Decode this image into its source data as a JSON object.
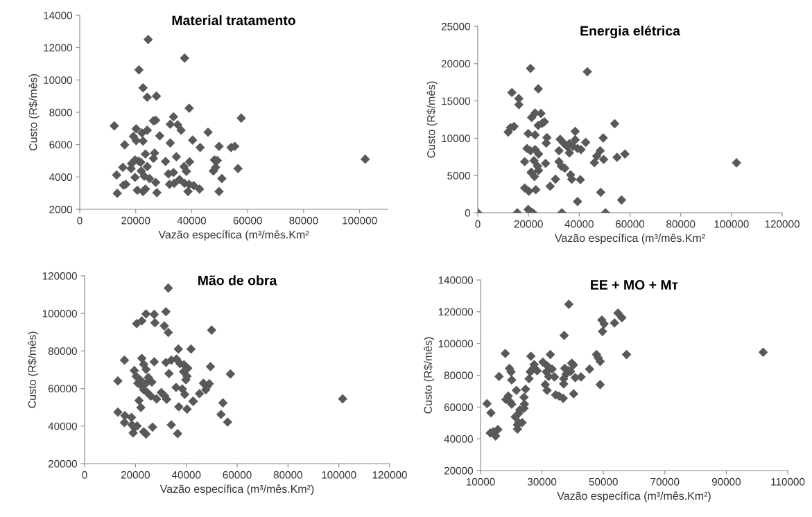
{
  "chart_data": [
    {
      "type": "scatter",
      "title": "Material tratamento",
      "xlabel": "Vazão específica (m³/mês.Km²",
      "ylabel": "Custo (R$/mês)",
      "marker": "diamond",
      "grid": false,
      "xlim": [
        0,
        110000
      ],
      "xticks": [
        0,
        20000,
        40000,
        60000,
        80000,
        100000
      ],
      "ylim": [
        2000,
        14000
      ],
      "yticks": [
        2000,
        4000,
        6000,
        8000,
        10000,
        12000,
        14000
      ],
      "series": [
        {
          "color": "#595959",
          "x": [
            24440,
            37450,
            21150,
            22630,
            24110,
            27400,
            39090,
            57690,
            12340,
            26330,
            27150,
            33500,
            32340,
            34980,
            36210,
            20160,
            22230,
            24110,
            19180,
            20160,
            22630,
            28580,
            45840,
            16050,
            32340,
            40320,
            43040,
            49780,
            54060,
            55380,
            23460,
            26740,
            26330,
            30650,
            34520,
            18520,
            19760,
            20980,
            21800,
            24110,
            39250,
            48140,
            49130,
            15390,
            18350,
            21980,
            37280,
            38110,
            47730,
            48550,
            56540,
            13170,
            19760,
            23050,
            24940,
            31680,
            33500,
            35640,
            50780,
            15640,
            16460,
            27150,
            32090,
            33740,
            37450,
            39090,
            40730,
            20570,
            22630,
            23460,
            38680,
            42790,
            27560,
            49780,
            13410,
            102000
          ],
          "values": [
            12500,
            11350,
            10620,
            9510,
            8930,
            9000,
            8250,
            7640,
            7160,
            7470,
            7510,
            7720,
            7260,
            7230,
            6890,
            6980,
            6720,
            6890,
            6510,
            6250,
            6220,
            6540,
            6770,
            5990,
            6100,
            6280,
            5820,
            5890,
            5820,
            5890,
            5420,
            5480,
            5150,
            4960,
            5250,
            4830,
            5050,
            4980,
            4910,
            4640,
            4940,
            5050,
            5020,
            4590,
            4520,
            4370,
            4640,
            4350,
            4370,
            4590,
            4520,
            4120,
            3970,
            4050,
            3900,
            4190,
            4270,
            3840,
            3900,
            3490,
            3540,
            3660,
            3540,
            3610,
            3610,
            3540,
            3470,
            3180,
            3100,
            3250,
            3100,
            3250,
            3030,
            3100,
            2990,
            5100
          ]
        }
      ]
    },
    {
      "type": "scatter",
      "title": "Energia elétrica",
      "xlabel": "Vazão específica (m³/mês.Km²",
      "ylabel": "Custo (R$/mês)",
      "marker": "diamond",
      "grid": false,
      "xlim": [
        0,
        120000
      ],
      "xticks": [
        0,
        20000,
        40000,
        60000,
        80000,
        100000,
        120000
      ],
      "ylim": [
        0,
        25000
      ],
      "yticks": [
        0,
        5000,
        10000,
        15000,
        20000,
        25000
      ],
      "series": [
        {
          "color": "#595959",
          "x": [
            0,
            15560,
            19870,
            20790,
            21700,
            33130,
            50340,
            20790,
            43200,
            23840,
            13460,
            16200,
            16200,
            21240,
            22610,
            24900,
            23800,
            25360,
            26270,
            12000,
            12910,
            14290,
            19870,
            22610,
            27250,
            26980,
            32470,
            33840,
            38410,
            38410,
            37500,
            36130,
            39330,
            40700,
            42530,
            35210,
            36130,
            32010,
            49450,
            48260,
            46890,
            45970,
            49630,
            53980,
            54900,
            58010,
            19410,
            20790,
            22610,
            23980,
            18490,
            22150,
            23520,
            23980,
            26720,
            21240,
            22340,
            21060,
            32010,
            32930,
            34300,
            36590,
            37040,
            30640,
            28530,
            40430,
            18490,
            20140,
            22880,
            48470,
            39330,
            56680,
            102000
          ],
          "values": [
            0,
            0,
            440,
            150,
            0,
            0,
            0,
            19350,
            18910,
            16620,
            16120,
            15320,
            14500,
            12790,
            13380,
            13320,
            11710,
            12000,
            12200,
            10820,
            11410,
            11560,
            10620,
            10440,
            10090,
            9350,
            9850,
            9350,
            10910,
            9790,
            8910,
            9260,
            8620,
            8470,
            9440,
            8910,
            8030,
            8320,
            10030,
            8320,
            7590,
            6710,
            7150,
            11940,
            7440,
            7880,
            8620,
            8320,
            8470,
            7880,
            6850,
            7000,
            6260,
            5680,
            6620,
            5320,
            4850,
            5440,
            6850,
            6260,
            5970,
            5090,
            4500,
            4500,
            3560,
            4440,
            3320,
            2880,
            3090,
            2740,
            1500,
            1710,
            6700
          ]
        }
      ]
    },
    {
      "type": "scatter",
      "title": "Mão de obra",
      "xlabel": "Vazão específica (m³/mês.Km²)",
      "ylabel": "Custo (R$/mês)",
      "marker": "diamond",
      "grid": false,
      "xlim": [
        0,
        120000
      ],
      "xticks": [
        0,
        20000,
        40000,
        60000,
        80000,
        100000,
        120000
      ],
      "ylim": [
        20000,
        120000
      ],
      "yticks": [
        20000,
        40000,
        60000,
        80000,
        100000,
        120000
      ],
      "series": [
        {
          "color": "#595959",
          "x": [
            32920,
            31990,
            24160,
            27380,
            22500,
            20470,
            27660,
            31350,
            32920,
            49970,
            36880,
            41860,
            15670,
            22500,
            23230,
            24160,
            27380,
            31990,
            34110,
            36140,
            37520,
            39090,
            40570,
            49510,
            57350,
            33190,
            38910,
            40290,
            39830,
            13090,
            19550,
            20290,
            20930,
            22310,
            21850,
            23230,
            24620,
            26000,
            28310,
            25080,
            26460,
            24160,
            30150,
            31530,
            32270,
            35960,
            38450,
            39370,
            42780,
            45180,
            46750,
            47670,
            49050,
            48130,
            21390,
            22130,
            13090,
            15860,
            18440,
            15670,
            18620,
            19550,
            20650,
            19090,
            23230,
            24160,
            26740,
            37060,
            40290,
            42600,
            54400,
            53660,
            56240,
            34110,
            36600,
            101500
          ],
          "values": [
            113480,
            100930,
            99700,
            99460,
            96010,
            94530,
            95020,
            93310,
            89860,
            91090,
            81010,
            81010,
            75100,
            76090,
            72890,
            70180,
            74240,
            73870,
            75100,
            75720,
            73260,
            72640,
            70800,
            71660,
            67720,
            67970,
            68950,
            66490,
            64650,
            64040,
            69570,
            66490,
            62800,
            61570,
            64650,
            59360,
            57880,
            56040,
            54440,
            65880,
            63420,
            62800,
            57880,
            56040,
            54200,
            60590,
            59730,
            56900,
            53210,
            57270,
            62800,
            59360,
            62560,
            60960,
            53580,
            49890,
            47430,
            45590,
            44600,
            41890,
            40660,
            39190,
            40050,
            36360,
            36980,
            35740,
            39430,
            50260,
            49030,
            53210,
            52350,
            46200,
            42140,
            40660,
            35990,
            54500
          ]
        }
      ]
    },
    {
      "type": "scatter",
      "title": "EE + MO + Mᴛ",
      "xlabel": "Vazão específica (m³/mês.Km²)",
      "ylabel": "Custo (R$/mês)",
      "marker": "diamond",
      "grid": false,
      "xlim": [
        10000,
        110000
      ],
      "xticks": [
        10000,
        30000,
        50000,
        70000,
        90000,
        110000
      ],
      "ylim": [
        20000,
        140000
      ],
      "yticks": [
        20000,
        40000,
        60000,
        80000,
        100000,
        120000,
        140000
      ],
      "series": [
        {
          "color": "#595959",
          "x": [
            38730,
            54740,
            56020,
            53620,
            49480,
            50230,
            49710,
            37220,
            18050,
            26390,
            32710,
            30300,
            57530,
            47750,
            48350,
            48950,
            27450,
            27150,
            28420,
            26170,
            19400,
            19930,
            20150,
            25790,
            16020,
            31810,
            33310,
            31430,
            32180,
            34060,
            37450,
            38580,
            37820,
            39330,
            39700,
            40230,
            37070,
            37070,
            40830,
            42710,
            45490,
            31060,
            31660,
            34440,
            35570,
            36920,
            40310,
            48950,
            19020,
            18270,
            19630,
            20150,
            21660,
            24660,
            24140,
            24290,
            24140,
            22780,
            12110,
            13380,
            22410,
            21280,
            22410,
            22030,
            23540,
            22030,
            13160,
            14890,
            15640,
            14140,
            102000
          ],
          "values": [
            124690,
            119170,
            116270,
            112930,
            114810,
            112350,
            107560,
            105090,
            93760,
            92020,
            93040,
            88240,
            93040,
            93040,
            90860,
            88680,
            86790,
            84320,
            82870,
            82150,
            84320,
            82150,
            77070,
            77790,
            79240,
            85780,
            83890,
            82150,
            79240,
            78950,
            84320,
            82870,
            80690,
            82440,
            87660,
            86500,
            77790,
            74600,
            78520,
            78950,
            83890,
            74160,
            70530,
            67620,
            66900,
            65450,
            68350,
            74160,
            66900,
            64720,
            63270,
            61820,
            70530,
            71260,
            66170,
            61820,
            59210,
            58190,
            62110,
            56300,
            56010,
            53830,
            50200,
            46140,
            50200,
            48750,
            43670,
            41780,
            45850,
            44400,
            94500
          ]
        }
      ]
    }
  ]
}
